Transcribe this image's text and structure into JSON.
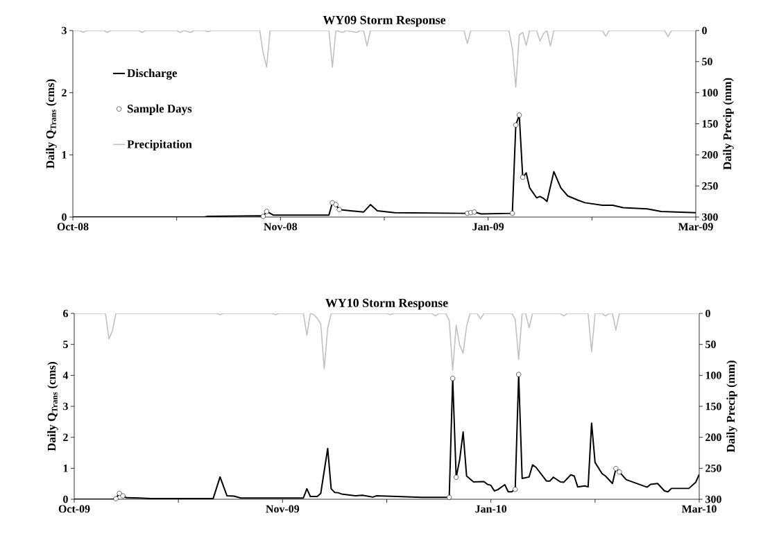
{
  "chart_data": [
    {
      "type": "line",
      "title": "WY09 Storm Response",
      "ylabel": "Daily Q$_{Trans}$ (cms)",
      "y2label": "Daily Precip (mm)",
      "xlim": [
        "2008-10-01",
        "2009-03-30"
      ],
      "xticks": [
        {
          "value": "2008-10-01",
          "label": "Oct-08"
        },
        {
          "value": "2008-10-31",
          "label": null
        },
        {
          "value": "2008-11-30",
          "label": "Nov-08"
        },
        {
          "value": "2008-12-30",
          "label": null
        },
        {
          "value": "2009-01-29",
          "label": "Jan-09"
        },
        {
          "value": "2009-02-28",
          "label": null
        },
        {
          "value": "2009-03-30",
          "label": "Mar-09"
        }
      ],
      "ylim": [
        0,
        3
      ],
      "yticks": [
        0,
        1,
        2,
        3
      ],
      "y2lim": [
        300,
        0
      ],
      "y2ticks": [
        0,
        50,
        100,
        150,
        200,
        250,
        300
      ],
      "legend": "top left",
      "series": [
        {
          "name": "Discharge",
          "color": "#000000",
          "x": [
            "2008-10-01",
            "2008-11-08",
            "2008-11-09",
            "2008-11-24",
            "2008-11-25",
            "2008-11-26",
            "2008-11-28",
            "2008-12-14",
            "2008-12-15",
            "2008-12-16",
            "2008-12-17",
            "2008-12-24",
            "2008-12-26",
            "2008-12-28",
            "2009-01-02",
            "2009-01-21",
            "2009-01-23",
            "2009-01-24",
            "2009-01-25",
            "2009-01-27",
            "2009-02-05",
            "2009-02-06",
            "2009-02-07",
            "2009-02-08",
            "2009-02-09",
            "2009-02-10",
            "2009-02-12",
            "2009-02-13",
            "2009-02-14",
            "2009-02-15",
            "2009-02-17",
            "2009-02-19",
            "2009-02-21",
            "2009-02-24",
            "2009-02-26",
            "2009-03-03",
            "2009-03-06",
            "2009-03-09",
            "2009-03-16",
            "2009-03-20",
            "2009-03-30"
          ],
          "values": [
            0,
            0,
            0.01,
            0.02,
            0.01,
            0.09,
            0.03,
            0.03,
            0.23,
            0.2,
            0.12,
            0.08,
            0.2,
            0.1,
            0.07,
            0.06,
            0.06,
            0.07,
            0.08,
            0.05,
            0.06,
            1.48,
            1.64,
            0.64,
            0.71,
            0.47,
            0.31,
            0.33,
            0.3,
            0.25,
            0.73,
            0.47,
            0.34,
            0.27,
            0.23,
            0.19,
            0.19,
            0.15,
            0.13,
            0.09,
            0.07
          ]
        },
        {
          "name": "Sample Days",
          "type": "scatter",
          "marker": "circle",
          "color": "#ffffff",
          "x": [
            "2008-11-25",
            "2008-11-26",
            "2008-12-15",
            "2008-12-16",
            "2008-12-17",
            "2009-01-23",
            "2009-01-24",
            "2009-01-25",
            "2009-02-05",
            "2009-02-06",
            "2009-02-07",
            "2009-02-08"
          ],
          "values": [
            0.01,
            0.09,
            0.23,
            0.2,
            0.12,
            0.06,
            0.07,
            0.08,
            0.06,
            1.48,
            1.64,
            0.64
          ]
        },
        {
          "name": "Precipitation",
          "axis": "y2",
          "color": "#c0c0c0",
          "x": [
            "2008-10-01",
            "2008-10-03",
            "2008-10-04",
            "2008-10-05",
            "2008-10-10",
            "2008-10-11",
            "2008-10-12",
            "2008-10-20",
            "2008-10-21",
            "2008-10-22",
            "2008-10-31",
            "2008-11-01",
            "2008-11-02",
            "2008-11-04",
            "2008-11-05",
            "2008-11-08",
            "2008-11-09",
            "2008-11-10",
            "2008-11-24",
            "2008-11-25",
            "2008-11-26",
            "2008-11-27",
            "2008-12-14",
            "2008-12-15",
            "2008-12-16",
            "2008-12-18",
            "2008-12-19",
            "2008-12-22",
            "2008-12-23",
            "2008-12-24",
            "2008-12-25",
            "2008-12-26",
            "2009-01-22",
            "2009-01-23",
            "2009-01-24",
            "2009-02-04",
            "2009-02-05",
            "2009-02-06",
            "2009-02-07",
            "2009-02-08",
            "2009-02-09",
            "2009-02-10",
            "2009-02-12",
            "2009-02-13",
            "2009-02-14",
            "2009-02-15",
            "2009-02-16",
            "2009-02-17",
            "2009-03-03",
            "2009-03-04",
            "2009-03-05",
            "2009-03-21",
            "2009-03-22",
            "2009-03-23",
            "2009-03-30"
          ],
          "values": [
            0,
            0,
            3,
            0,
            0,
            3,
            0,
            0,
            3,
            0,
            0,
            3,
            0,
            3,
            0,
            0,
            2,
            0,
            0,
            36,
            59,
            0,
            0,
            59,
            0,
            3,
            0,
            3,
            0,
            0,
            25,
            0,
            0,
            21,
            0,
            0,
            29,
            91,
            7,
            3,
            24,
            0,
            0,
            17,
            5,
            0,
            25,
            0,
            0,
            9,
            0,
            0,
            10,
            0,
            0
          ]
        }
      ]
    },
    {
      "type": "line",
      "title": "WY10 Storm Response",
      "ylabel": "Daily Q$_{Trans}$ (cms)",
      "y2label": "Daily Precip (mm)",
      "xlim": [
        "2009-10-01",
        "2010-03-30"
      ],
      "xticks": [
        {
          "value": "2009-10-01",
          "label": "Oct-09"
        },
        {
          "value": "2009-10-31",
          "label": null
        },
        {
          "value": "2009-11-30",
          "label": "Nov-09"
        },
        {
          "value": "2009-12-30",
          "label": null
        },
        {
          "value": "2010-01-29",
          "label": "Jan-10"
        },
        {
          "value": "2010-02-28",
          "label": null
        },
        {
          "value": "2010-03-30",
          "label": "Mar-10"
        }
      ],
      "ylim": [
        0,
        6
      ],
      "yticks": [
        0,
        1,
        2,
        3,
        4,
        5,
        6
      ],
      "y2lim": [
        300,
        0
      ],
      "y2ticks": [
        0,
        50,
        100,
        150,
        200,
        250,
        300
      ],
      "series": [
        {
          "color": "#000000",
          "x": [
            "2009-10-01",
            "2009-10-12",
            "2009-10-13",
            "2009-10-14",
            "2009-10-15",
            "2009-10-16",
            "2009-10-20",
            "2009-10-23",
            "2009-11-10",
            "2009-11-12",
            "2009-11-14",
            "2009-11-16",
            "2009-11-18",
            "2009-12-06",
            "2009-12-07",
            "2009-12-08",
            "2009-12-10",
            "2009-12-11",
            "2009-12-13",
            "2009-12-14",
            "2009-12-15",
            "2009-12-16",
            "2009-12-17",
            "2009-12-21",
            "2009-12-23",
            "2009-12-26",
            "2009-12-27",
            "2010-01-02",
            "2010-01-09",
            "2010-01-17",
            "2010-01-18",
            "2010-01-19",
            "2010-01-20",
            "2010-01-21",
            "2010-01-22",
            "2010-01-24",
            "2010-01-27",
            "2010-01-28",
            "2010-01-29",
            "2010-01-30",
            "2010-01-31",
            "2010-02-02",
            "2010-02-03",
            "2010-02-04",
            "2010-02-05",
            "2010-02-06",
            "2010-02-07",
            "2010-02-09",
            "2010-02-10",
            "2010-02-11",
            "2010-02-14",
            "2010-02-15",
            "2010-02-16",
            "2010-02-18",
            "2010-02-19",
            "2010-02-21",
            "2010-02-22",
            "2010-02-23",
            "2010-02-25",
            "2010-02-26",
            "2010-02-27",
            "2010-02-28",
            "2010-03-02",
            "2010-03-03",
            "2010-03-05",
            "2010-03-06",
            "2010-03-07",
            "2010-03-09",
            "2010-03-10",
            "2010-03-15",
            "2010-03-16",
            "2010-03-18",
            "2010-03-20",
            "2010-03-21",
            "2010-03-22",
            "2010-03-27",
            "2010-03-29",
            "2010-03-30"
          ],
          "values": [
            0,
            0,
            0.02,
            0.19,
            0.11,
            0.05,
            0.04,
            0.02,
            0.02,
            0.72,
            0.11,
            0.1,
            0.04,
            0.04,
            0.34,
            0.09,
            0.09,
            0.19,
            1.64,
            0.34,
            0.22,
            0.21,
            0.17,
            0.11,
            0.13,
            0.07,
            0.11,
            0.09,
            0.06,
            0.06,
            3.9,
            0.71,
            1.27,
            2.17,
            0.75,
            0.56,
            0.57,
            0.48,
            0.45,
            0.27,
            0.31,
            0.47,
            0.24,
            0.24,
            0.32,
            4.03,
            0.67,
            0.72,
            1.11,
            1.03,
            0.59,
            0.59,
            0.71,
            0.56,
            0.55,
            0.79,
            0.75,
            0.4,
            0.43,
            0.4,
            2.46,
            1.19,
            0.83,
            0.75,
            0.51,
            0.99,
            0.88,
            0.63,
            0.59,
            0.39,
            0.48,
            0.51,
            0.27,
            0.24,
            0.35,
            0.35,
            0.55,
            0.8
          ]
        },
        {
          "type": "scatter",
          "marker": "circle",
          "color": "#ffffff",
          "x": [
            "2009-10-13",
            "2009-10-14",
            "2009-10-15",
            "2010-01-17",
            "2010-01-18",
            "2010-01-19",
            "2010-02-05",
            "2010-02-06",
            "2010-03-06",
            "2010-03-07"
          ],
          "values": [
            0.02,
            0.19,
            0.11,
            0.06,
            3.9,
            0.71,
            0.32,
            4.03,
            0.99,
            0.88
          ]
        },
        {
          "axis": "y2",
          "color": "#c0c0c0",
          "x": [
            "2009-10-01",
            "2009-10-10",
            "2009-10-11",
            "2009-10-12",
            "2009-10-13",
            "2009-11-11",
            "2009-11-12",
            "2009-11-13",
            "2009-11-27",
            "2009-11-28",
            "2009-11-29",
            "2009-12-06",
            "2009-12-07",
            "2009-12-08",
            "2009-12-09",
            "2009-12-10",
            "2009-12-11",
            "2009-12-12",
            "2009-12-13",
            "2009-12-14",
            "2009-12-30",
            "2009-12-31",
            "2010-01-01",
            "2010-01-12",
            "2010-01-13",
            "2010-01-14",
            "2010-01-16",
            "2010-01-17",
            "2010-01-18",
            "2010-01-19",
            "2010-01-20",
            "2010-01-21",
            "2010-01-22",
            "2010-01-23",
            "2010-01-25",
            "2010-01-26",
            "2010-01-27",
            "2010-02-04",
            "2010-02-05",
            "2010-02-06",
            "2010-02-07",
            "2010-02-08",
            "2010-02-09",
            "2010-02-10",
            "2010-02-18",
            "2010-02-19",
            "2010-02-20",
            "2010-02-26",
            "2010-02-27",
            "2010-02-28",
            "2010-03-02",
            "2010-03-03",
            "2010-03-04",
            "2010-03-05",
            "2010-03-06",
            "2010-03-07",
            "2010-03-30"
          ],
          "values": [
            0,
            0,
            41,
            28,
            0,
            0,
            2,
            0,
            0,
            2,
            0,
            0,
            35,
            0,
            2,
            8,
            17,
            89,
            24,
            0,
            0,
            2,
            0,
            0,
            4,
            0,
            0,
            11,
            92,
            19,
            51,
            64,
            21,
            0,
            0,
            9,
            0,
            0,
            9,
            74,
            0,
            0,
            23,
            0,
            0,
            4,
            0,
            0,
            62,
            0,
            0,
            4,
            0,
            0,
            27,
            0,
            0
          ]
        }
      ]
    }
  ]
}
